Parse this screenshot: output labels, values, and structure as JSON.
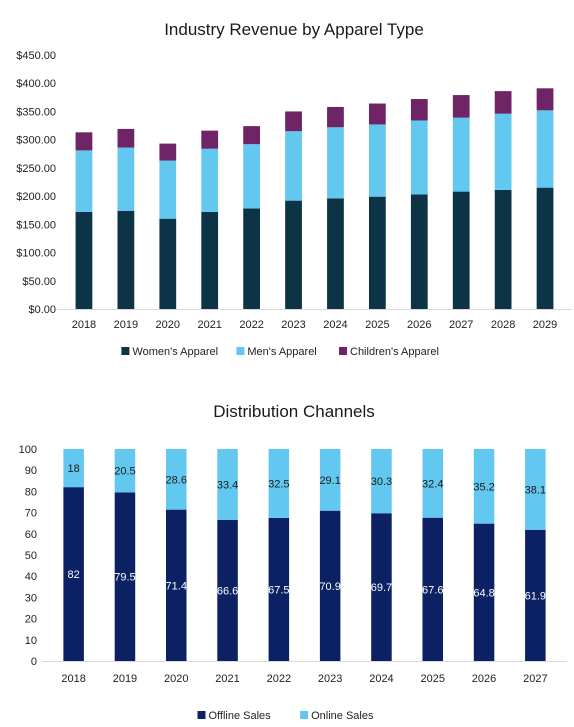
{
  "chart_data": [
    {
      "type": "bar",
      "stacked": true,
      "title": "Industry Revenue by Apparel Type",
      "categories": [
        "2018",
        "2019",
        "2020",
        "2021",
        "2022",
        "2023",
        "2024",
        "2025",
        "2026",
        "2027",
        "2028",
        "2029"
      ],
      "series": [
        {
          "name": "Women's Apparel",
          "color": "#0d3347",
          "values": [
            172,
            174,
            160,
            172,
            178,
            192,
            196,
            199,
            203,
            208,
            211,
            215
          ]
        },
        {
          "name": "Men's Apparel",
          "color": "#63c8ef",
          "values": [
            109,
            112,
            103,
            112,
            114,
            123,
            126,
            128,
            131,
            131,
            135,
            137
          ]
        },
        {
          "name": "Children's Apparel",
          "color": "#6e2465",
          "values": [
            32,
            33,
            30,
            32,
            32,
            35,
            36,
            37,
            38,
            40,
            40,
            39
          ]
        }
      ],
      "ylim": [
        0,
        450
      ],
      "yticks": [
        "$0.00",
        "$50.00",
        "$100.00",
        "$150.00",
        "$200.00",
        "$250.00",
        "$300.00",
        "$350.00",
        "$400.00",
        "$450.00"
      ],
      "legend_position": "bottom",
      "grid": false
    },
    {
      "type": "bar",
      "stacked": true,
      "title": "Distribution Channels",
      "categories": [
        "2018",
        "2019",
        "2020",
        "2021",
        "2022",
        "2023",
        "2024",
        "2025",
        "2026",
        "2027"
      ],
      "series": [
        {
          "name": "Offline Sales",
          "color": "#0b2163",
          "values": [
            82,
            79.5,
            71.4,
            66.6,
            67.5,
            70.9,
            69.7,
            67.6,
            64.8,
            61.9
          ]
        },
        {
          "name": "Online Sales",
          "color": "#63c8ef",
          "values": [
            18,
            20.5,
            28.6,
            33.4,
            32.5,
            29.1,
            30.3,
            32.4,
            35.2,
            38.1
          ]
        }
      ],
      "ylim": [
        0,
        100
      ],
      "yticks": [
        "0",
        "10",
        "20",
        "30",
        "40",
        "50",
        "60",
        "70",
        "80",
        "90",
        "100"
      ],
      "data_labels": true,
      "legend_position": "bottom",
      "grid": false
    }
  ]
}
